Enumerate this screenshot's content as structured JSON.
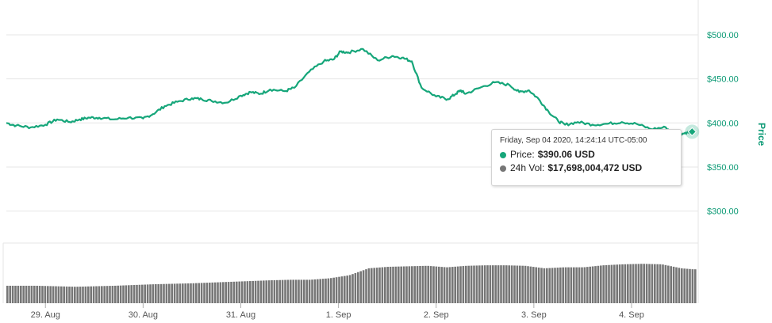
{
  "colors": {
    "price_line": "#16a67a",
    "volume_bar": "#767676",
    "axis_text_y": "#0c9a75",
    "grid": "#e6e6e6"
  },
  "tooltip": {
    "header": "Friday, Sep 04 2020, 14:24:14 UTC-05:00",
    "price_label": "Price:",
    "price_value": "$390.06 USD",
    "volume_label": "24h Vol:",
    "volume_value": "$17,698,004,472 USD",
    "price_dot_color": "#16a67a",
    "volume_dot_color": "#767676"
  },
  "chart_data": {
    "type": "line",
    "ylabel": "Price",
    "y_ticks": [
      "$300.00",
      "$350.00",
      "$400.00",
      "$450.00",
      "$500.00"
    ],
    "y_tick_values": [
      300,
      350,
      400,
      450,
      500
    ],
    "ylim": [
      270,
      535
    ],
    "x_ticks": [
      "29. Aug",
      "30. Aug",
      "31. Aug",
      "1. Sep",
      "2. Sep",
      "3. Sep",
      "4. Sep"
    ],
    "x_tick_positions": [
      0.5,
      1.5,
      2.5,
      3.5,
      4.5,
      5.5,
      6.5
    ],
    "x_range": [
      0.1,
      7.15
    ],
    "series": [
      {
        "name": "Price",
        "x": [
          0.1,
          0.2,
          0.35,
          0.5,
          0.62,
          0.75,
          0.85,
          0.95,
          1.05,
          1.2,
          1.35,
          1.5,
          1.6,
          1.72,
          1.85,
          2.0,
          2.1,
          2.2,
          2.35,
          2.5,
          2.6,
          2.7,
          2.8,
          2.95,
          3.05,
          3.2,
          3.35,
          3.45,
          3.52,
          3.6,
          3.75,
          3.9,
          4.05,
          4.15,
          4.25,
          4.35,
          4.5,
          4.62,
          4.7,
          4.75,
          4.8,
          4.95,
          5.1,
          5.25,
          5.35,
          5.45,
          5.55,
          5.65,
          5.75,
          5.82,
          5.95,
          6.1,
          6.25,
          6.4,
          6.55,
          6.7,
          6.85,
          6.95,
          7.05,
          7.12
        ],
        "values": [
          400,
          397,
          395,
          398,
          404,
          401,
          404,
          406,
          406,
          404,
          406,
          405,
          410,
          419,
          424,
          428,
          427,
          425,
          423,
          431,
          435,
          433,
          438,
          436,
          440,
          458,
          470,
          472,
          481,
          480,
          484,
          471,
          476,
          474,
          470,
          440,
          430,
          427,
          433,
          437,
          433,
          440,
          446,
          443,
          435,
          437,
          427,
          413,
          402,
          398,
          401,
          398,
          399,
          401,
          399,
          393,
          395,
          386,
          389,
          390
        ]
      },
      {
        "name": "24h Vol",
        "x": [
          0.1,
          0.4,
          0.8,
          1.2,
          1.6,
          2.0,
          2.4,
          2.8,
          3.0,
          3.2,
          3.4,
          3.6,
          3.8,
          4.0,
          4.2,
          4.4,
          4.6,
          4.8,
          5.0,
          5.2,
          5.4,
          5.6,
          5.8,
          6.0,
          6.2,
          6.4,
          6.6,
          6.8,
          7.0,
          7.12
        ],
        "values": [
          0.35,
          0.35,
          0.33,
          0.35,
          0.38,
          0.4,
          0.43,
          0.46,
          0.47,
          0.47,
          0.5,
          0.56,
          0.7,
          0.73,
          0.74,
          0.75,
          0.72,
          0.75,
          0.76,
          0.76,
          0.75,
          0.7,
          0.72,
          0.72,
          0.76,
          0.78,
          0.79,
          0.78,
          0.7,
          0.68
        ]
      }
    ],
    "grid": true,
    "legend": "none"
  }
}
